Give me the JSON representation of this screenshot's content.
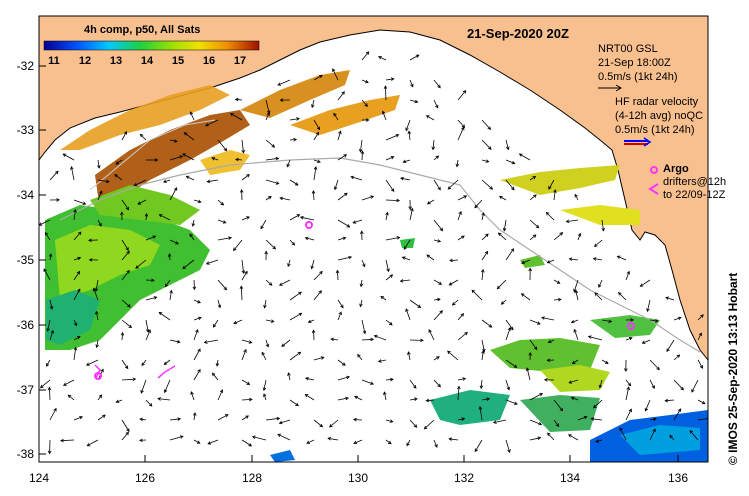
{
  "map": {
    "date_title": "21-Sep-2020 20Z",
    "colorbar_title": "4h comp, p50, All Sats",
    "colorbar_ticks": [
      "11",
      "12",
      "13",
      "14",
      "15",
      "16",
      "17"
    ],
    "lat_ticks": [
      "-32",
      "-33",
      "-34",
      "-35",
      "-36",
      "-37",
      "-38"
    ],
    "lon_ticks": [
      "124",
      "126",
      "128",
      "130",
      "132",
      "134",
      "136"
    ],
    "legend": {
      "nrt_title": "NRT00 GSL",
      "nrt_time": "21-Sep 18:00Z",
      "nrt_scale": "0.5m/s (1kt 24h)",
      "hf_title": "HF radar velocity",
      "hf_sub": "(4-12h avg) noQC",
      "hf_scale": "0.5m/s (1kt 24h)",
      "argo_label": "Argo",
      "drifters_label": "drifters@12h",
      "drifters_to": "to 22/09-12Z"
    },
    "credit": "© IMOS 25-Sep-2020 13:13 Hobart",
    "colors": {
      "land": "#f9c08f",
      "argo": "#ff33ff",
      "hf_arrow": "#0000ff"
    }
  }
}
